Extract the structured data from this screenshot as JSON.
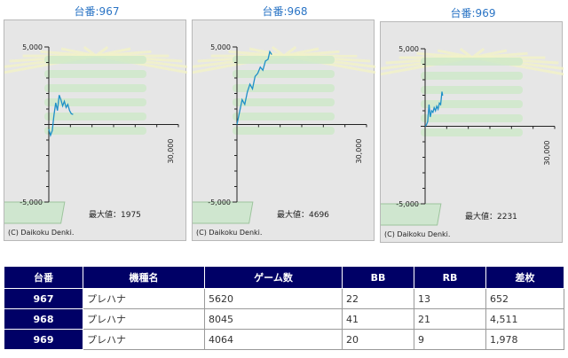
{
  "panels": [
    {
      "title": "台番:967",
      "max_label": "最大値：1975",
      "copyright": "(C) Daikoku Denki."
    },
    {
      "title": "台番:968",
      "max_label": "最大値：4696",
      "copyright": "(C) Daikoku Denki."
    },
    {
      "title": "台番:969",
      "max_label": "最大値：2231",
      "copyright": "(C) Daikoku Denki."
    }
  ],
  "axis": {
    "y_top": "5,000",
    "y_bottom": "-5,000",
    "x_right": "30,000"
  },
  "chart_data": [
    {
      "type": "line",
      "title": "台番:967",
      "ylim": [
        -5000,
        5000
      ],
      "xlim": [
        0,
        30000
      ],
      "x": [
        0,
        400,
        800,
        1200,
        1600,
        2000,
        2400,
        2800,
        3200,
        3600,
        4000,
        4400,
        4800,
        5200,
        5620
      ],
      "values": [
        -300,
        -700,
        -400,
        600,
        1400,
        900,
        1900,
        1600,
        1200,
        1500,
        1100,
        1300,
        900,
        700,
        652
      ]
    },
    {
      "type": "line",
      "title": "台番:968",
      "ylim": [
        -5000,
        5000
      ],
      "xlim": [
        0,
        30000
      ],
      "x": [
        0,
        600,
        1200,
        1800,
        2400,
        3000,
        3600,
        4200,
        4800,
        5400,
        6000,
        6600,
        7200,
        7600,
        8045
      ],
      "values": [
        0,
        800,
        1600,
        1300,
        2100,
        2600,
        2300,
        3100,
        3300,
        3700,
        3500,
        4100,
        4200,
        4696,
        4511
      ]
    },
    {
      "type": "line",
      "title": "台番:969",
      "ylim": [
        -5000,
        5000
      ],
      "xlim": [
        0,
        30000
      ],
      "x": [
        0,
        300,
        600,
        900,
        1200,
        1500,
        1800,
        2100,
        2400,
        2700,
        3000,
        3300,
        3600,
        3900,
        4064
      ],
      "values": [
        0,
        100,
        300,
        1400,
        600,
        1000,
        900,
        1200,
        1000,
        1300,
        1100,
        1500,
        1400,
        2231,
        1978
      ]
    }
  ],
  "table": {
    "headers": [
      "台番",
      "機種名",
      "ゲーム数",
      "BB",
      "RB",
      "差枚"
    ],
    "rows": [
      [
        "967",
        "プレハナ",
        "5620",
        "22",
        "13",
        "652"
      ],
      [
        "968",
        "プレハナ",
        "8045",
        "41",
        "21",
        "4,511"
      ],
      [
        "969",
        "プレハナ",
        "4064",
        "20",
        "9",
        "1,978"
      ]
    ]
  },
  "colors": {
    "line": "#1e90c8",
    "header_bg": "#000066",
    "title": "#2a74c5"
  }
}
